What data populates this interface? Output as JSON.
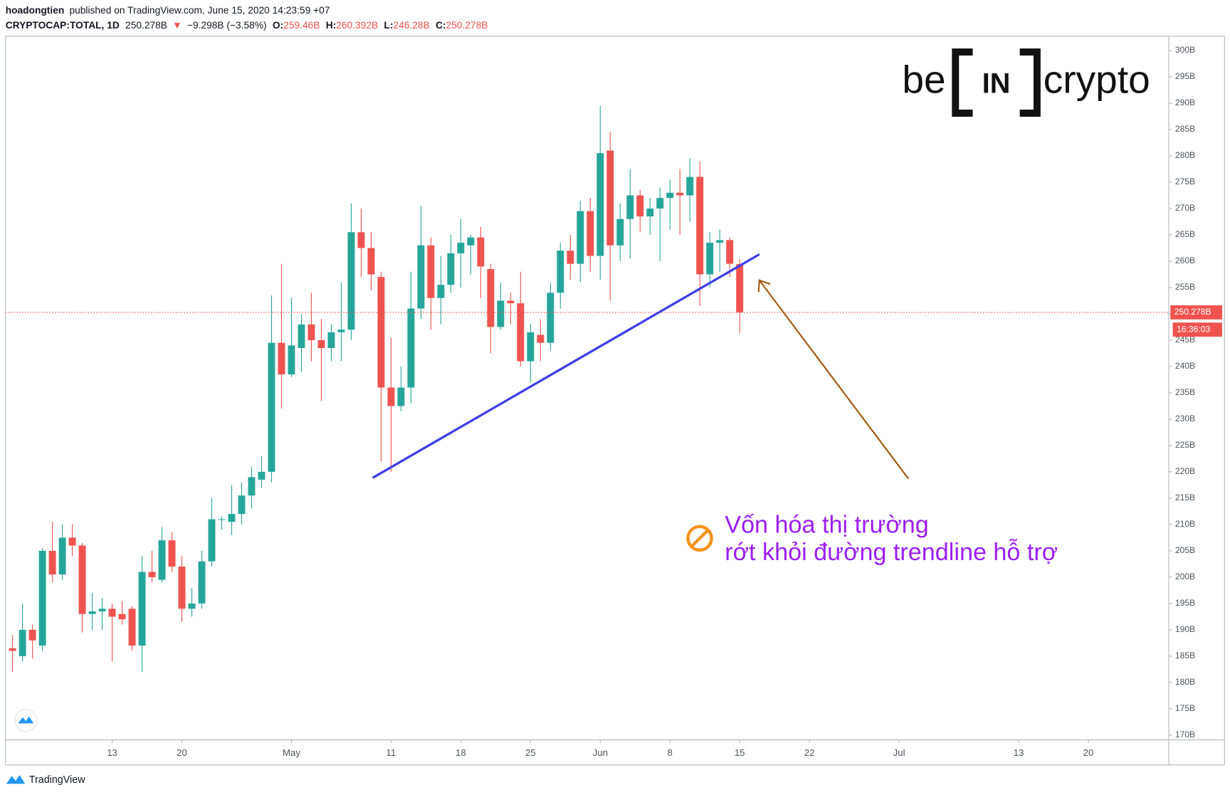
{
  "header": {
    "author": "hoadongtien",
    "published": "published on TradingView.com, June 15, 2020 14:23:59 +07",
    "symbol": "CRYPTOCAP:TOTAL, 1D",
    "price": "250.278B",
    "change_arrow": "▼",
    "change": "−9.298B (−3.58%)",
    "ohlc": [
      {
        "label": "O:",
        "value": "259.46B"
      },
      {
        "label": "H:",
        "value": "260.392B"
      },
      {
        "label": "L:",
        "value": "246.28B"
      },
      {
        "label": "C:",
        "value": "250.278B"
      }
    ]
  },
  "logo": {
    "left": "be",
    "middle": "IN",
    "right": "crypto"
  },
  "annotation": {
    "lines": [
      "Vốn hóa thị trường",
      "rớt khỏi đường trendline hỗ trợ"
    ],
    "color": "#9b1ff0"
  },
  "footer": "TradingView",
  "chart_data": {
    "type": "candlestick",
    "up_color": "#26a69a",
    "down_color": "#ef5350",
    "grid": false,
    "x": [
      "2020-04-03",
      "2020-04-04",
      "2020-04-05",
      "2020-04-06",
      "2020-04-07",
      "2020-04-08",
      "2020-04-09",
      "2020-04-10",
      "2020-04-11",
      "2020-04-12",
      "2020-04-13",
      "2020-04-14",
      "2020-04-15",
      "2020-04-16",
      "2020-04-17",
      "2020-04-18",
      "2020-04-19",
      "2020-04-20",
      "2020-04-21",
      "2020-04-22",
      "2020-04-23",
      "2020-04-24",
      "2020-04-25",
      "2020-04-26",
      "2020-04-27",
      "2020-04-28",
      "2020-04-29",
      "2020-04-30",
      "2020-05-01",
      "2020-05-02",
      "2020-05-03",
      "2020-05-04",
      "2020-05-05",
      "2020-05-06",
      "2020-05-07",
      "2020-05-08",
      "2020-05-09",
      "2020-05-10",
      "2020-05-11",
      "2020-05-12",
      "2020-05-13",
      "2020-05-14",
      "2020-05-15",
      "2020-05-16",
      "2020-05-17",
      "2020-05-18",
      "2020-05-19",
      "2020-05-20",
      "2020-05-21",
      "2020-05-22",
      "2020-05-23",
      "2020-05-24",
      "2020-05-25",
      "2020-05-26",
      "2020-05-27",
      "2020-05-28",
      "2020-05-29",
      "2020-05-30",
      "2020-05-31",
      "2020-06-01",
      "2020-06-02",
      "2020-06-03",
      "2020-06-04",
      "2020-06-05",
      "2020-06-06",
      "2020-06-07",
      "2020-06-08",
      "2020-06-09",
      "2020-06-10",
      "2020-06-11",
      "2020-06-12",
      "2020-06-13",
      "2020-06-14",
      "2020-06-15"
    ],
    "open": [
      186.5,
      185,
      190,
      187,
      205,
      200.5,
      207.5,
      206,
      193,
      193.5,
      194,
      193,
      194,
      187,
      201,
      199.5,
      207,
      202,
      194,
      195,
      203,
      211,
      210.5,
      212,
      215.5,
      218.5,
      220,
      244.5,
      238.5,
      243.5,
      248,
      245,
      243.5,
      246.5,
      247,
      265.5,
      262.5,
      257,
      236,
      232.5,
      236,
      251,
      263,
      253,
      255.5,
      261.5,
      263,
      264.5,
      258.5,
      247.5,
      252.5,
      252,
      241,
      246,
      244.5,
      254,
      262,
      259.5,
      269.5,
      261,
      281,
      263,
      268,
      272.5,
      268.5,
      270,
      272,
      273,
      272.5,
      276,
      257.5,
      263.5,
      264,
      259.46
    ],
    "high": [
      189,
      195,
      191,
      205.5,
      210.5,
      210,
      210,
      206.5,
      197,
      196,
      195,
      195.5,
      194.5,
      204,
      205,
      209.5,
      208.5,
      204,
      198,
      205,
      215,
      211.5,
      217.5,
      218,
      221,
      223,
      253.5,
      259.5,
      253,
      250,
      254,
      249,
      248,
      256,
      271,
      270,
      265.5,
      258,
      245.5,
      240,
      258,
      270.5,
      264.5,
      261,
      265,
      268,
      265,
      266.5,
      259.5,
      256,
      254,
      258,
      248,
      249,
      256,
      263.5,
      265,
      271.5,
      272,
      289.5,
      284.5,
      271,
      277.5,
      273.5,
      272,
      274,
      275.5,
      277.5,
      279.5,
      279,
      265.5,
      266,
      264.5,
      260.392
    ],
    "low": [
      182,
      184,
      184.5,
      186,
      199,
      199.5,
      204,
      189.5,
      190,
      190,
      184,
      191,
      186,
      182,
      199,
      199,
      201,
      191.5,
      192.5,
      194,
      202,
      209,
      208,
      210,
      213,
      217,
      218,
      232,
      238,
      239,
      241,
      233.5,
      241,
      241,
      245,
      257,
      254.5,
      222,
      220,
      231.5,
      233,
      249,
      247,
      248,
      254,
      255,
      257.5,
      253,
      242.5,
      247,
      248,
      240,
      237,
      241,
      243,
      251,
      256.5,
      256,
      258,
      256.5,
      252.5,
      260,
      260.5,
      265.5,
      265,
      260,
      266,
      265,
      267.5,
      251.5,
      255,
      258,
      257,
      246.28
    ],
    "close": [
      186,
      190,
      188,
      205,
      200.5,
      207.5,
      206,
      193,
      193.5,
      194,
      192.5,
      192,
      187,
      201,
      200,
      207,
      202,
      194,
      195,
      203,
      211,
      211,
      212,
      215.5,
      219,
      220,
      244.5,
      238.5,
      244,
      248,
      245,
      243.5,
      246.5,
      247,
      265.5,
      262.5,
      257.5,
      236,
      232.5,
      236,
      251,
      263,
      253,
      255.5,
      261.5,
      263.5,
      264.5,
      259,
      247.5,
      252.5,
      252,
      241,
      246.5,
      244.5,
      254,
      262,
      259.5,
      269.5,
      261,
      280.5,
      263,
      268,
      272.5,
      268.5,
      270,
      272,
      273,
      272.5,
      276,
      257.5,
      263.5,
      264,
      259.5,
      250.278
    ],
    "xlim": [
      "2020-04-02",
      "2020-07-28"
    ],
    "ylim": [
      169.1,
      302.7
    ],
    "yticks": [
      {
        "value": 170,
        "label": "170B"
      },
      {
        "value": 175,
        "label": "175B"
      },
      {
        "value": 180,
        "label": "180B"
      },
      {
        "value": 185,
        "label": "185B"
      },
      {
        "value": 190,
        "label": "190B"
      },
      {
        "value": 195,
        "label": "195B"
      },
      {
        "value": 200,
        "label": "200B"
      },
      {
        "value": 205,
        "label": "205B"
      },
      {
        "value": 210,
        "label": "210B"
      },
      {
        "value": 215,
        "label": "215B"
      },
      {
        "value": 220,
        "label": "220B"
      },
      {
        "value": 225,
        "label": "225B"
      },
      {
        "value": 230,
        "label": "230B"
      },
      {
        "value": 235,
        "label": "235B"
      },
      {
        "value": 240,
        "label": "240B"
      },
      {
        "value": 245,
        "label": "245B"
      },
      {
        "value": 250,
        "label": "250B"
      },
      {
        "value": 255,
        "label": "255B"
      },
      {
        "value": 260,
        "label": "260B"
      },
      {
        "value": 265,
        "label": "265B"
      },
      {
        "value": 270,
        "label": "270B"
      },
      {
        "value": 275,
        "label": "275B"
      },
      {
        "value": 280,
        "label": "280B"
      },
      {
        "value": 285,
        "label": "285B"
      },
      {
        "value": 290,
        "label": "290B"
      },
      {
        "value": 295,
        "label": "295B"
      },
      {
        "value": 300,
        "label": "300B"
      }
    ],
    "xticks": [
      {
        "value": "2020-04-13",
        "label": "13"
      },
      {
        "value": "2020-04-20",
        "label": "20"
      },
      {
        "value": "2020-05-01",
        "label": "May"
      },
      {
        "value": "2020-05-11",
        "label": "11"
      },
      {
        "value": "2020-05-18",
        "label": "18"
      },
      {
        "value": "2020-05-25",
        "label": "25"
      },
      {
        "value": "2020-06-01",
        "label": "Jun"
      },
      {
        "value": "2020-06-08",
        "label": "8"
      },
      {
        "value": "2020-06-15",
        "label": "15"
      },
      {
        "value": "2020-06-22",
        "label": "22"
      },
      {
        "value": "2020-07-01",
        "label": "Jul"
      },
      {
        "value": "2020-07-13",
        "label": "13"
      },
      {
        "value": "2020-07-20",
        "label": "20"
      }
    ],
    "price_label": "250.278B",
    "countdown": "16:36:03"
  }
}
